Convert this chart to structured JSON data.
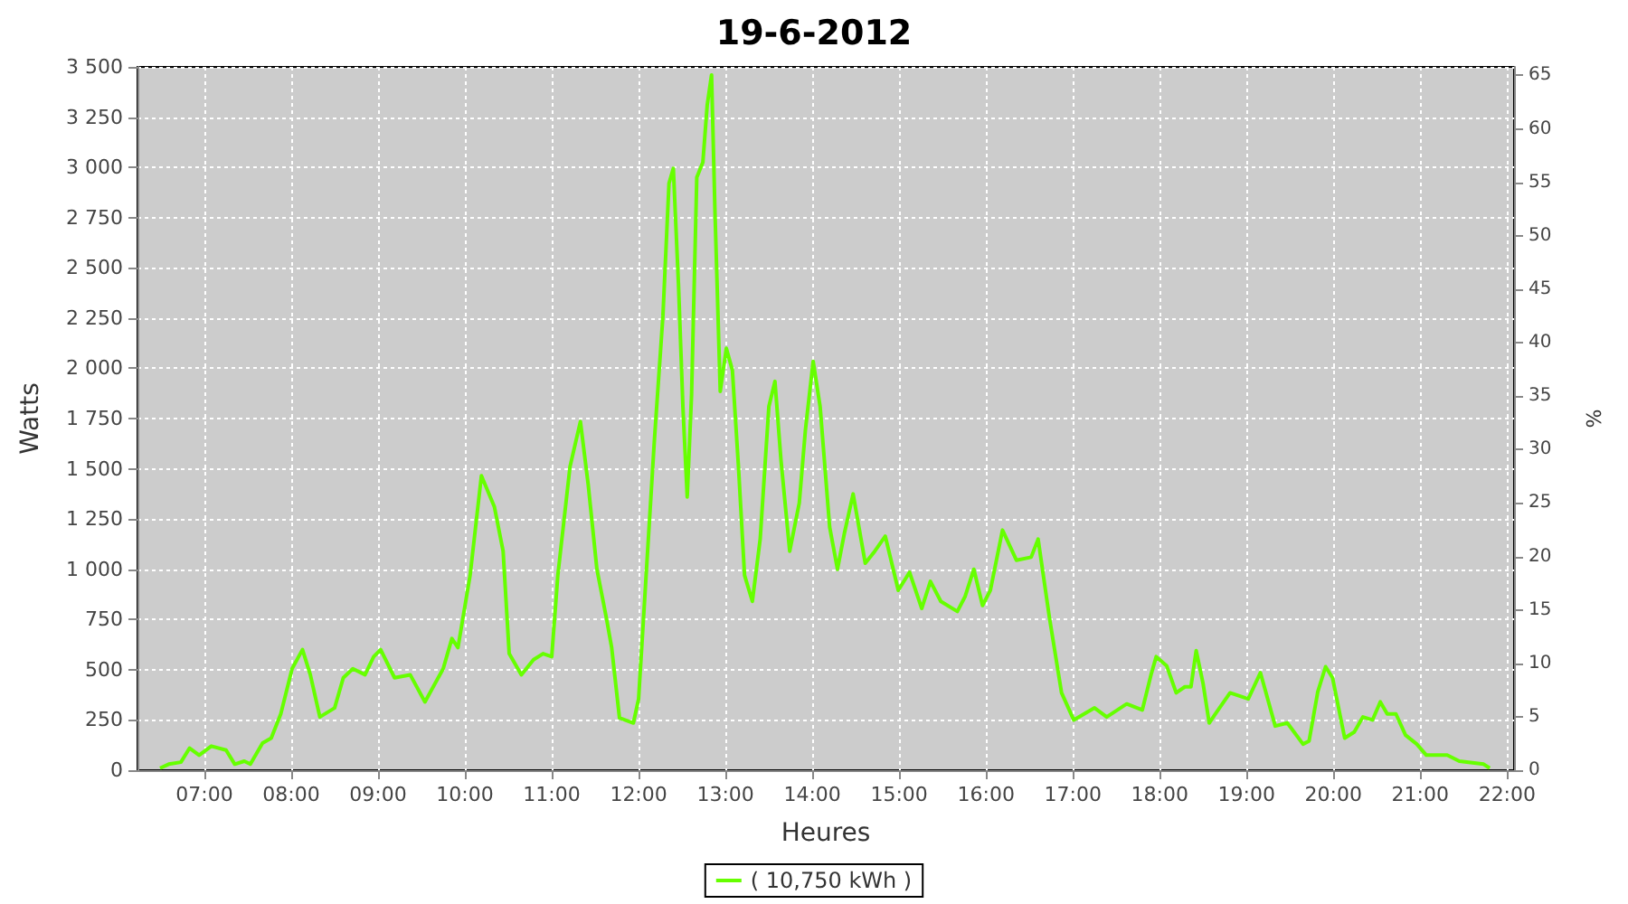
{
  "chart_data": {
    "type": "line",
    "title": "19-6-2012",
    "xlabel": "Heures",
    "ylabel": "Watts",
    "y2label": "%",
    "xlim": [
      6.23,
      22.08
    ],
    "xticks": [
      {
        "value": 7,
        "label": "07:00"
      },
      {
        "value": 8,
        "label": "08:00"
      },
      {
        "value": 9,
        "label": "09:00"
      },
      {
        "value": 10,
        "label": "10:00"
      },
      {
        "value": 11,
        "label": "11:00"
      },
      {
        "value": 12,
        "label": "12:00"
      },
      {
        "value": 13,
        "label": "13:00"
      },
      {
        "value": 14,
        "label": "14:00"
      },
      {
        "value": 15,
        "label": "15:00"
      },
      {
        "value": 16,
        "label": "16:00"
      },
      {
        "value": 17,
        "label": "17:00"
      },
      {
        "value": 18,
        "label": "18:00"
      },
      {
        "value": 19,
        "label": "19:00"
      },
      {
        "value": 20,
        "label": "20:00"
      },
      {
        "value": 21,
        "label": "21:00"
      },
      {
        "value": 22,
        "label": "22:00"
      }
    ],
    "ylim": [
      0,
      3500
    ],
    "yticks": [
      0,
      250,
      500,
      750,
      {
        "value": 1000,
        "label": "1 000"
      },
      {
        "value": 1250,
        "label": "1 250"
      },
      {
        "value": 1500,
        "label": "1 500"
      },
      {
        "value": 1750,
        "label": "1 750"
      },
      {
        "value": 2000,
        "label": "2 000"
      },
      {
        "value": 2250,
        "label": "2 250"
      },
      {
        "value": 2500,
        "label": "2 500"
      },
      {
        "value": 2750,
        "label": "2 750"
      },
      {
        "value": 3000,
        "label": "3 000"
      },
      {
        "value": 3250,
        "label": "3 250"
      },
      {
        "value": 3500,
        "label": "3 500"
      }
    ],
    "y2lim": [
      0,
      65.8
    ],
    "y2ticks": [
      0,
      5,
      10,
      15,
      20,
      25,
      30,
      35,
      40,
      45,
      50,
      55,
      60,
      65
    ],
    "grid": true,
    "legend": "bottom",
    "marker": "none",
    "series": [
      {
        "name": "( 10,750 kWh )",
        "color": "#66ff00",
        "x": [
          6.49,
          6.59,
          6.73,
          6.83,
          6.94,
          7.08,
          7.25,
          7.35,
          7.46,
          7.53,
          7.67,
          7.77,
          7.88,
          8.01,
          8.13,
          8.22,
          8.33,
          8.5,
          8.6,
          8.71,
          8.85,
          8.95,
          9.03,
          9.19,
          9.37,
          9.54,
          9.75,
          9.85,
          9.92,
          10.06,
          10.19,
          10.34,
          10.44,
          10.51,
          10.65,
          10.79,
          10.9,
          11.0,
          11.07,
          11.21,
          11.33,
          11.42,
          11.52,
          11.63,
          11.69,
          11.78,
          11.94,
          12.0,
          12.18,
          12.28,
          12.35,
          12.4,
          12.46,
          12.51,
          12.56,
          12.61,
          12.67,
          12.74,
          12.79,
          12.84,
          12.88,
          12.94,
          13.01,
          13.08,
          13.15,
          13.22,
          13.31,
          13.4,
          13.5,
          13.57,
          13.64,
          13.74,
          13.85,
          13.92,
          14.01,
          14.09,
          14.2,
          14.29,
          14.37,
          14.47,
          14.61,
          14.72,
          14.84,
          14.99,
          15.12,
          15.26,
          15.36,
          15.48,
          15.67,
          15.76,
          15.86,
          15.96,
          16.05,
          16.19,
          16.35,
          16.52,
          16.6,
          16.73,
          16.87,
          17.01,
          17.25,
          17.39,
          17.62,
          17.8,
          17.9,
          17.96,
          18.08,
          18.19,
          18.29,
          18.36,
          18.42,
          18.5,
          18.57,
          18.64,
          18.81,
          19.02,
          19.16,
          19.33,
          19.47,
          19.65,
          19.72,
          19.82,
          19.91,
          19.99,
          20.13,
          20.24,
          20.34,
          20.45,
          20.54,
          20.62,
          20.72,
          20.83,
          20.96,
          21.07,
          21.31,
          21.45,
          21.73,
          21.8
        ],
        "values": [
          10,
          30,
          40,
          110,
          75,
          120,
          100,
          30,
          45,
          30,
          135,
          160,
          280,
          505,
          600,
          475,
          265,
          310,
          460,
          505,
          475,
          565,
          600,
          460,
          475,
          340,
          505,
          655,
          610,
          970,
          1465,
          1310,
          1090,
          580,
          475,
          550,
          580,
          565,
          970,
          1510,
          1735,
          1420,
          1000,
          755,
          610,
          260,
          235,
          355,
          1630,
          2260,
          2920,
          2995,
          2410,
          1810,
          1360,
          1870,
          2950,
          3025,
          3310,
          3460,
          2770,
          1885,
          2100,
          1990,
          1510,
          970,
          840,
          1150,
          1810,
          1935,
          1540,
          1090,
          1330,
          1690,
          2035,
          1810,
          1210,
          1000,
          1180,
          1375,
          1030,
          1090,
          1165,
          895,
          985,
          805,
          940,
          840,
          790,
          865,
          1000,
          820,
          895,
          1195,
          1045,
          1060,
          1150,
          760,
          385,
          250,
          310,
          265,
          330,
          300,
          475,
          565,
          520,
          385,
          415,
          415,
          595,
          430,
          235,
          280,
          385,
          355,
          485,
          220,
          235,
          130,
          145,
          390,
          515,
          460,
          160,
          190,
          265,
          250,
          340,
          280,
          280,
          175,
          130,
          75,
          75,
          45,
          30,
          10
        ]
      }
    ]
  }
}
